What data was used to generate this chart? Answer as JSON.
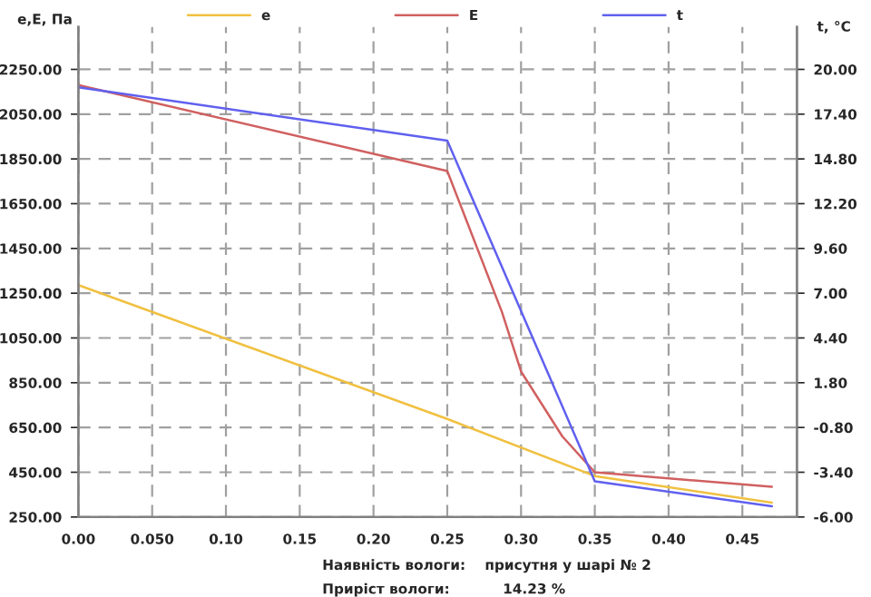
{
  "chart_data": {
    "type": "line",
    "ylabel": "e,E, Па",
    "y2label": "t, °C",
    "annotations": [
      "Наявність вологи:    присутня у шарі № 2",
      "Приріст вологи:           14.23 %"
    ],
    "series": [
      {
        "name": "e",
        "color": "#f0c040",
        "x": [
          0,
          0.25,
          0.35,
          0.47
        ],
        "values": [
          1286,
          688,
          433,
          314
        ]
      },
      {
        "name": "E",
        "color": "#d06060",
        "x": [
          0,
          0.25,
          0.287,
          0.3,
          0.328,
          0.35,
          0.47
        ],
        "values": [
          2180,
          1796,
          1167,
          900,
          610,
          450,
          385
        ]
      },
      {
        "name": "t",
        "color": "#6060f0",
        "axis": "y2",
        "x": [
          0,
          0.25,
          0.35,
          0.47
        ],
        "values": [
          18.96,
          15.86,
          -3.93,
          -5.38
        ]
      }
    ],
    "xlim": [
      0,
      0.487
    ],
    "xticks": [
      {
        "value": 0,
        "label": "0.00"
      },
      {
        "value": 0.05,
        "label": "0.050"
      },
      {
        "value": 0.1,
        "label": "0.10"
      },
      {
        "value": 0.15,
        "label": "0.15"
      },
      {
        "value": 0.2,
        "label": "0.20"
      },
      {
        "value": 0.25,
        "label": "0.25"
      },
      {
        "value": 0.3,
        "label": "0.30"
      },
      {
        "value": 0.35,
        "label": "0.35"
      },
      {
        "value": 0.4,
        "label": "0.40"
      },
      {
        "value": 0.45,
        "label": "0.45"
      }
    ],
    "ylim": [
      250,
      2440
    ],
    "yticks": [
      {
        "value": 250,
        "label": "250.00"
      },
      {
        "value": 450,
        "label": "450.00"
      },
      {
        "value": 650,
        "label": "650.00"
      },
      {
        "value": 850,
        "label": "850.00"
      },
      {
        "value": 1050,
        "label": "1050.00"
      },
      {
        "value": 1250,
        "label": "1250.00"
      },
      {
        "value": 1450,
        "label": "1450.00"
      },
      {
        "value": 1650,
        "label": "1650.00"
      },
      {
        "value": 1850,
        "label": "1850.00"
      },
      {
        "value": 2050,
        "label": "2050.00"
      },
      {
        "value": 2250,
        "label": "2250.00"
      }
    ],
    "y2lim": [
      -6,
      22.47
    ],
    "y2ticks": [
      {
        "value": -6,
        "label": "-6.00"
      },
      {
        "value": -3.4,
        "label": "-3.40"
      },
      {
        "value": -0.8,
        "label": "-0.80"
      },
      {
        "value": 1.8,
        "label": "1.80"
      },
      {
        "value": 4.4,
        "label": "4.40"
      },
      {
        "value": 7,
        "label": "7.00"
      },
      {
        "value": 9.6,
        "label": "9.60"
      },
      {
        "value": 12.2,
        "label": "12.20"
      },
      {
        "value": 14.8,
        "label": "14.80"
      },
      {
        "value": 17.4,
        "label": "17.40"
      },
      {
        "value": 20,
        "label": "20.00"
      }
    ],
    "grid": true,
    "legend": "top",
    "marker": "none",
    "line_style": "solid"
  }
}
